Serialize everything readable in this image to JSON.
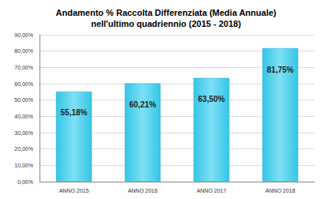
{
  "chart_data": {
    "type": "bar",
    "title": "Andamento % Raccolta Differenziata (Media Annuale)\nnell'ultimo quadriennio (2015 - 2018)",
    "categories": [
      "ANNO 2015",
      "ANNO 2016",
      "ANNO 2017",
      "ANNO 2018"
    ],
    "values": [
      55.18,
      60.21,
      63.5,
      81.75
    ],
    "value_labels": [
      "55,18%",
      "60,21%",
      "63,50%",
      "81,75%"
    ],
    "color": "#33c6e6",
    "ylim": [
      0,
      90
    ],
    "yticks": [
      {
        "value": 0,
        "label": "0,00%"
      },
      {
        "value": 10,
        "label": "10,00%"
      },
      {
        "value": 20,
        "label": "20,00%"
      },
      {
        "value": 30,
        "label": "30,00%"
      },
      {
        "value": 40,
        "label": "40,00%"
      },
      {
        "value": 50,
        "label": "50,00%"
      },
      {
        "value": 60,
        "label": "60,00%"
      },
      {
        "value": 70,
        "label": "70,00%"
      },
      {
        "value": 80,
        "label": "80,00%"
      },
      {
        "value": 90,
        "label": "90,00%"
      }
    ],
    "grid": true,
    "data_labels": true
  }
}
